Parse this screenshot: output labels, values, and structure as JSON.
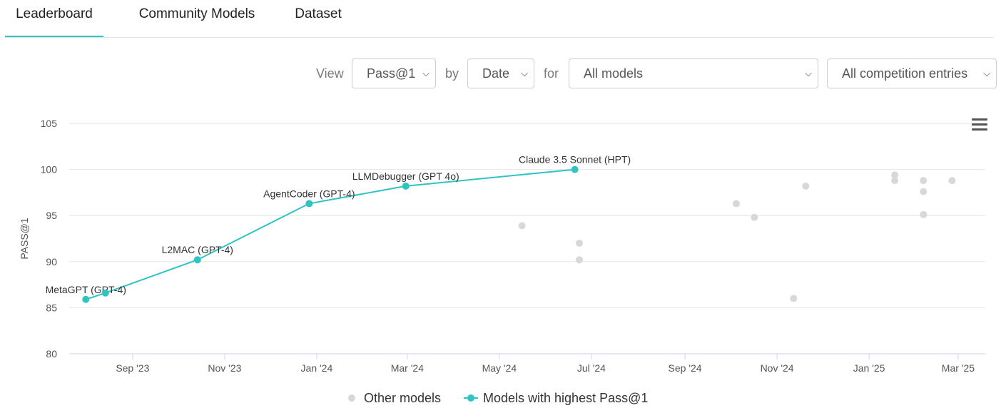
{
  "tabs": [
    {
      "label": "Leaderboard",
      "active": true
    },
    {
      "label": "Community Models",
      "active": false
    },
    {
      "label": "Dataset",
      "active": false
    }
  ],
  "controls": {
    "view_word": "View",
    "metric": "Pass@1",
    "by_word": "by",
    "sort": "Date",
    "for_word": "for",
    "models": "All models",
    "entries": "All competition entries"
  },
  "colors": {
    "accent": "#2ec4c4",
    "other": "#d8d8d8",
    "grid": "#e6e6e6",
    "axis": "#ccd6eb"
  },
  "chart_data": {
    "type": "line",
    "ylabel": "PASS@1",
    "ylim": [
      80,
      105
    ],
    "yticks": [
      80,
      85,
      90,
      95,
      100,
      105
    ],
    "xlim": [
      "2023-07-21",
      "2025-03-19"
    ],
    "xticks": [
      {
        "date": "2023-09-01",
        "label": "Sep '23"
      },
      {
        "date": "2023-11-01",
        "label": "Nov '23"
      },
      {
        "date": "2024-01-01",
        "label": "Jan '24"
      },
      {
        "date": "2024-03-01",
        "label": "Mar '24"
      },
      {
        "date": "2024-05-01",
        "label": "May '24"
      },
      {
        "date": "2024-07-01",
        "label": "Jul '24"
      },
      {
        "date": "2024-09-01",
        "label": "Sep '24"
      },
      {
        "date": "2024-11-01",
        "label": "Nov '24"
      },
      {
        "date": "2025-01-01",
        "label": "Jan '25"
      },
      {
        "date": "2025-03-01",
        "label": "Mar '25"
      }
    ],
    "series": [
      {
        "name": "Models with highest Pass@1",
        "points": [
          {
            "date": "2023-08-01",
            "y": 85.9,
            "label": "MetaGPT (GPT-4)"
          },
          {
            "date": "2023-08-14",
            "y": 86.6,
            "label": ""
          },
          {
            "date": "2023-10-14",
            "y": 90.2,
            "label": "L2MAC (GPT-4)"
          },
          {
            "date": "2023-12-27",
            "y": 96.3,
            "label": "AgentCoder (GPT-4)"
          },
          {
            "date": "2024-02-29",
            "y": 98.2,
            "label": "LLMDebugger (GPT 4o)"
          },
          {
            "date": "2024-06-20",
            "y": 100.0,
            "label": "Claude 3.5 Sonnet (HPT)"
          }
        ]
      },
      {
        "name": "Other models",
        "points": [
          {
            "date": "2024-05-16",
            "y": 93.9
          },
          {
            "date": "2024-06-23",
            "y": 92.0
          },
          {
            "date": "2024-06-23",
            "y": 90.2
          },
          {
            "date": "2024-10-05",
            "y": 96.3
          },
          {
            "date": "2024-10-17",
            "y": 94.8
          },
          {
            "date": "2024-11-12",
            "y": 86.0
          },
          {
            "date": "2024-11-20",
            "y": 98.2
          },
          {
            "date": "2025-01-18",
            "y": 99.4
          },
          {
            "date": "2025-01-18",
            "y": 98.8
          },
          {
            "date": "2025-02-06",
            "y": 98.8
          },
          {
            "date": "2025-02-06",
            "y": 97.6
          },
          {
            "date": "2025-02-06",
            "y": 95.1
          },
          {
            "date": "2025-02-25",
            "y": 98.8
          }
        ]
      }
    ],
    "legend": [
      {
        "label": "Other models"
      },
      {
        "label": "Models with highest Pass@1"
      }
    ],
    "legend_position": "bottom-center"
  }
}
